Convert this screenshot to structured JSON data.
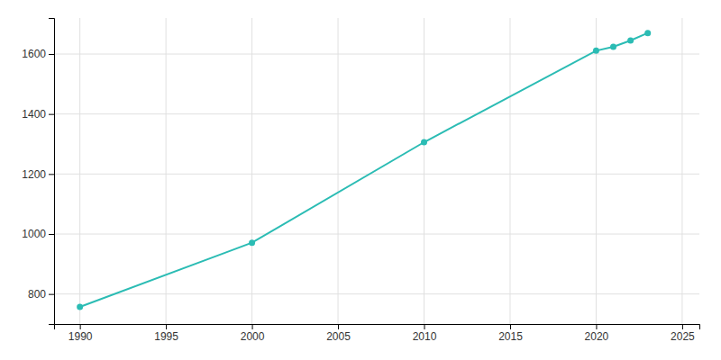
{
  "chart_data": {
    "type": "line",
    "x": [
      1990,
      2000,
      2010,
      2020,
      2021,
      2022,
      2023
    ],
    "values": [
      757,
      971,
      1306,
      1611,
      1624,
      1645,
      1670
    ],
    "color": "#2bbcb4",
    "marker": "circle",
    "xlim": [
      1988.5,
      2026
    ],
    "ylim": [
      700,
      1720
    ],
    "xticks": [
      1990,
      1995,
      2000,
      2005,
      2010,
      2015,
      2020,
      2025
    ],
    "yticks": [
      800,
      1000,
      1200,
      1400,
      1600
    ],
    "grid": true
  }
}
